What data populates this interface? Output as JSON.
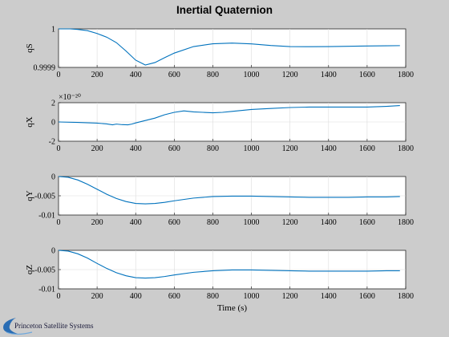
{
  "figure": {
    "title": "Inertial Quaternion",
    "xlabel": "Time (s)",
    "logo_text": "Princeton Satellite Systems",
    "line_color": "#0072bd"
  },
  "chart_data": [
    {
      "type": "line",
      "ylabel": "qS",
      "xlim": [
        0,
        1800
      ],
      "ylim": [
        0.9999,
        1
      ],
      "xticks": [
        0,
        200,
        400,
        600,
        800,
        1000,
        1200,
        1400,
        1600,
        1800
      ],
      "yticks": [
        0.9999,
        1
      ],
      "ytick_labels": [
        "0.9999",
        "1"
      ],
      "exponent_label": "",
      "series": [
        {
          "x": [
            0,
            60,
            100,
            150,
            200,
            250,
            300,
            350,
            400,
            450,
            500,
            550,
            600,
            700,
            800,
            900,
            1000,
            1100,
            1200,
            1300,
            1400,
            1500,
            1600,
            1700,
            1770
          ],
          "y": [
            1.0,
            1.0,
            0.99999865,
            0.9999954,
            0.999988,
            0.9999785,
            0.9999643,
            0.9999425,
            0.9999188,
            0.9999063,
            0.9999126,
            0.9999252,
            0.9999371,
            0.9999541,
            0.9999613,
            0.9999632,
            0.999961,
            0.9999569,
            0.9999541,
            0.9999538,
            0.9999541,
            0.9999549,
            0.9999556,
            0.9999561,
            0.9999565
          ]
        }
      ]
    },
    {
      "type": "line",
      "ylabel": "qX",
      "xlim": [
        0,
        1800
      ],
      "ylim": [
        -2,
        2
      ],
      "xticks": [
        0,
        200,
        400,
        600,
        800,
        1000,
        1200,
        1400,
        1600,
        1800
      ],
      "yticks": [
        -2,
        0,
        2
      ],
      "ytick_labels": [
        "-2",
        "0",
        "2"
      ],
      "exponent_label": "×10⁻²⁰",
      "series": [
        {
          "x": [
            0,
            100,
            200,
            250,
            280,
            300,
            330,
            360,
            380,
            400,
            450,
            500,
            550,
            600,
            650,
            700,
            750,
            800,
            850,
            900,
            1000,
            1100,
            1200,
            1300,
            1400,
            1500,
            1600,
            1700,
            1770
          ],
          "y": [
            0.0,
            -0.05,
            -0.12,
            -0.2,
            -0.3,
            -0.22,
            -0.28,
            -0.3,
            -0.22,
            -0.1,
            0.15,
            0.4,
            0.75,
            1.0,
            1.15,
            1.05,
            1.0,
            0.95,
            1.0,
            1.1,
            1.3,
            1.4,
            1.5,
            1.55,
            1.55,
            1.55,
            1.55,
            1.62,
            1.7
          ]
        }
      ]
    },
    {
      "type": "line",
      "ylabel": "qY",
      "xlim": [
        0,
        1800
      ],
      "ylim": [
        -0.01,
        0
      ],
      "xticks": [
        0,
        200,
        400,
        600,
        800,
        1000,
        1200,
        1400,
        1600,
        1800
      ],
      "yticks": [
        -0.01,
        -0.005,
        0
      ],
      "ytick_labels": [
        "-0.01",
        "-0.005",
        "0"
      ],
      "exponent_label": "",
      "series": [
        {
          "x": [
            0,
            50,
            100,
            150,
            200,
            250,
            300,
            350,
            400,
            450,
            500,
            550,
            600,
            700,
            800,
            900,
            1000,
            1100,
            1200,
            1300,
            1400,
            1500,
            1600,
            1700,
            1770
          ],
          "y": [
            0.0,
            -0.0002,
            -0.0009,
            -0.002,
            -0.0033,
            -0.0046,
            -0.0057,
            -0.0065,
            -0.007,
            -0.0071,
            -0.007,
            -0.0067,
            -0.0063,
            -0.0056,
            -0.0052,
            -0.0051,
            -0.0051,
            -0.0052,
            -0.0053,
            -0.0054,
            -0.0054,
            -0.0054,
            -0.0053,
            -0.0053,
            -0.0052
          ]
        }
      ]
    },
    {
      "type": "line",
      "ylabel": "qZ",
      "xlim": [
        0,
        1800
      ],
      "ylim": [
        -0.01,
        0
      ],
      "xticks": [
        0,
        200,
        400,
        600,
        800,
        1000,
        1200,
        1400,
        1600,
        1800
      ],
      "yticks": [
        -0.01,
        -0.005,
        0
      ],
      "ytick_labels": [
        "-0.01",
        "-0.005",
        "0"
      ],
      "exponent_label": "",
      "series": [
        {
          "x": [
            0,
            50,
            100,
            150,
            200,
            250,
            300,
            350,
            400,
            450,
            500,
            550,
            600,
            700,
            800,
            900,
            1000,
            1100,
            1200,
            1300,
            1400,
            1500,
            1600,
            1700,
            1770
          ],
          "y": [
            0.0,
            -0.0002,
            -0.0009,
            -0.002,
            -0.0034,
            -0.0047,
            -0.0058,
            -0.0066,
            -0.0071,
            -0.0072,
            -0.0071,
            -0.0068,
            -0.0064,
            -0.0057,
            -0.0053,
            -0.0051,
            -0.0051,
            -0.0052,
            -0.0053,
            -0.0054,
            -0.0054,
            -0.0054,
            -0.0054,
            -0.0053,
            -0.0053
          ]
        }
      ]
    }
  ]
}
